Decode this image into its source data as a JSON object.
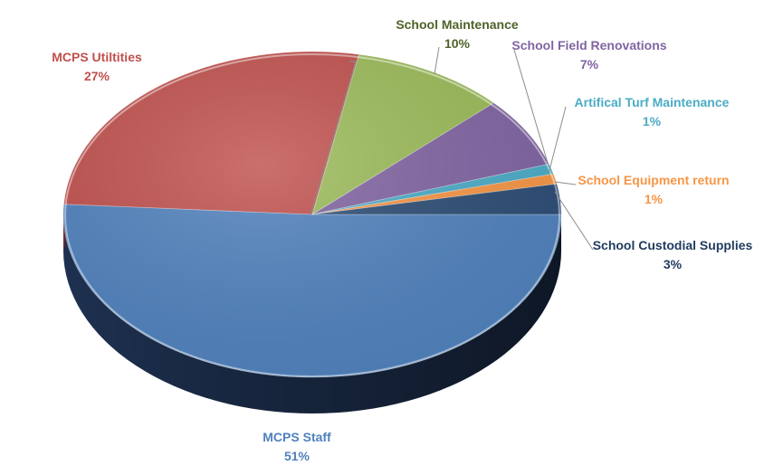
{
  "chart_data": {
    "type": "pie",
    "title": "",
    "slices": [
      {
        "label": "MCPS Staff",
        "pct_label": "51%",
        "value": 51,
        "color": "#4F81BD",
        "dark": "#1F3354",
        "label_color": "#4F81BD"
      },
      {
        "label": "MCPS Utiltities",
        "pct_label": "27%",
        "value": 27,
        "color": "#C0504D",
        "dark": "#6E2826",
        "label_color": "#C0504D"
      },
      {
        "label": "School Maintenance",
        "pct_label": "10%",
        "value": 10,
        "color": "#9BBB59",
        "dark": "#57692F",
        "label_color": "#4F6228"
      },
      {
        "label": "School Field Renovations",
        "pct_label": "7%",
        "value": 7,
        "color": "#8064A2",
        "dark": "#463660",
        "label_color": "#8064A2"
      },
      {
        "label": "Artifical Turf Maintenance",
        "pct_label": "1%",
        "value": 1,
        "color": "#4BACC6",
        "dark": "#24606F",
        "label_color": "#4BACC6"
      },
      {
        "label": "School Equipment return",
        "pct_label": "1%",
        "value": 1,
        "color": "#F79646",
        "dark": "#8F5222",
        "label_color": "#F79646"
      },
      {
        "label": "School Custodial Supplies",
        "pct_label": "3%",
        "value": 3,
        "color": "#2C4D75",
        "dark": "#172A40",
        "label_color": "#1F3A5F"
      }
    ]
  }
}
